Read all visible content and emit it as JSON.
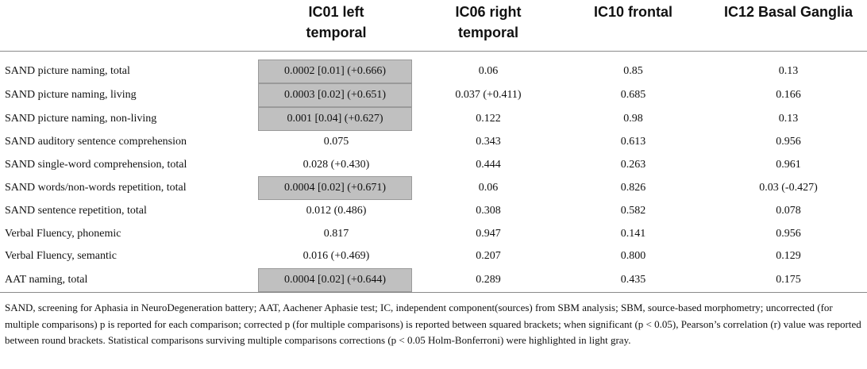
{
  "table": {
    "headers": [
      {
        "line1": "",
        "line2": ""
      },
      {
        "line1": "IC01 left",
        "line2": "temporal"
      },
      {
        "line1": "IC06 right",
        "line2": "temporal"
      },
      {
        "line1": "IC10 frontal",
        "line2": ""
      },
      {
        "line1": "IC12 Basal Ganglia",
        "line2": ""
      }
    ],
    "rows": [
      {
        "label": "SAND picture naming, total",
        "cells": [
          "0.0002 [0.01] (+0.666)",
          "0.06",
          "0.85",
          "0.13"
        ],
        "highlight": [
          true,
          false,
          false,
          false
        ]
      },
      {
        "label": "SAND picture naming, living",
        "cells": [
          "0.0003 [0.02] (+0.651)",
          "0.037 (+0.411)",
          "0.685",
          "0.166"
        ],
        "highlight": [
          true,
          false,
          false,
          false
        ]
      },
      {
        "label": "SAND picture naming, non-living",
        "cells": [
          "0.001 [0.04] (+0.627)",
          "0.122",
          "0.98",
          "0.13"
        ],
        "highlight": [
          true,
          false,
          false,
          false
        ]
      },
      {
        "label": "SAND auditory sentence comprehension",
        "cells": [
          "0.075",
          "0.343",
          "0.613",
          "0.956"
        ],
        "highlight": [
          false,
          false,
          false,
          false
        ]
      },
      {
        "label": "SAND single-word comprehension, total",
        "cells": [
          "0.028 (+0.430)",
          "0.444",
          "0.263",
          "0.961"
        ],
        "highlight": [
          false,
          false,
          false,
          false
        ]
      },
      {
        "label": "SAND words/non-words repetition, total",
        "cells": [
          "0.0004 [0.02] (+0.671)",
          "0.06",
          "0.826",
          "0.03 (-0.427)"
        ],
        "highlight": [
          true,
          false,
          false,
          false
        ]
      },
      {
        "label": "SAND sentence repetition, total",
        "cells": [
          "0.012 (0.486)",
          "0.308",
          "0.582",
          "0.078"
        ],
        "highlight": [
          false,
          false,
          false,
          false
        ]
      },
      {
        "label": "Verbal Fluency, phonemic",
        "cells": [
          "0.817",
          "0.947",
          "0.141",
          "0.956"
        ],
        "highlight": [
          false,
          false,
          false,
          false
        ]
      },
      {
        "label": "Verbal Fluency, semantic",
        "cells": [
          "0.016 (+0.469)",
          "0.207",
          "0.800",
          "0.129"
        ],
        "highlight": [
          false,
          false,
          false,
          false
        ]
      },
      {
        "label": "AAT naming, total",
        "cells": [
          "0.0004 [0.02] (+0.644)",
          "0.289",
          "0.435",
          "0.175"
        ],
        "highlight": [
          true,
          false,
          false,
          false
        ]
      }
    ],
    "highlight_color": "#c0c0c0"
  },
  "footnote": "SAND, screening for Aphasia in NeuroDegeneration battery; AAT, Aachener Aphasie test; IC, independent component(sources) from SBM analysis; SBM, source-based morphometry; uncorrected (for multiple comparisons) p is reported for each comparison; corrected p (for multiple comparisons) is reported between squared brackets; when significant (p < 0.05), Pearson’s correlation (r) value was reported between round brackets. Statistical comparisons surviving multiple comparisons corrections (p < 0.05 Holm-Bonferroni) were highlighted in light gray."
}
